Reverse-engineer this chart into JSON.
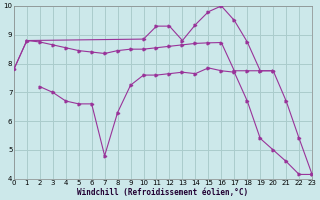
{
  "background_color": "#cce8ea",
  "grid_color": "#aacccc",
  "line_color": "#993399",
  "xlabel": "Windchill (Refroidissement éolien,°C)",
  "ylim": [
    4,
    10
  ],
  "xlim": [
    0,
    23
  ],
  "yticks": [
    4,
    5,
    6,
    7,
    8,
    9,
    10
  ],
  "xticks": [
    0,
    1,
    2,
    3,
    4,
    5,
    6,
    7,
    8,
    9,
    10,
    11,
    12,
    13,
    14,
    15,
    16,
    17,
    18,
    19,
    20,
    21,
    22,
    23
  ],
  "s1_x": [
    0,
    1,
    2,
    3,
    4,
    5,
    6,
    7,
    8,
    9,
    10,
    11,
    12,
    13,
    14,
    15,
    16,
    17,
    18,
    19,
    20
  ],
  "s1_y": [
    7.8,
    8.8,
    8.75,
    8.65,
    8.55,
    8.45,
    8.4,
    8.35,
    8.45,
    8.5,
    8.5,
    8.55,
    8.6,
    8.65,
    8.7,
    8.72,
    8.73,
    7.75,
    7.75,
    7.75,
    7.75
  ],
  "s2_x": [
    0,
    1,
    10,
    11,
    12,
    13,
    14,
    15,
    16,
    17,
    18,
    19,
    20,
    21,
    22,
    23
  ],
  "s2_y": [
    7.8,
    8.8,
    8.85,
    9.3,
    9.3,
    8.8,
    9.35,
    9.8,
    10.0,
    9.5,
    8.75,
    7.75,
    7.75,
    6.7,
    5.4,
    4.15
  ],
  "s3_x": [
    2,
    3,
    4,
    5,
    6,
    7,
    8,
    9,
    10,
    11,
    12,
    13,
    14,
    15,
    16,
    17,
    18,
    19,
    20,
    21,
    22,
    23
  ],
  "s3_y": [
    7.2,
    7.0,
    6.7,
    6.6,
    6.6,
    4.8,
    6.3,
    7.25,
    7.6,
    7.6,
    7.65,
    7.7,
    7.65,
    7.85,
    7.75,
    7.7,
    6.7,
    5.4,
    5.0,
    4.6,
    4.15,
    4.15
  ]
}
